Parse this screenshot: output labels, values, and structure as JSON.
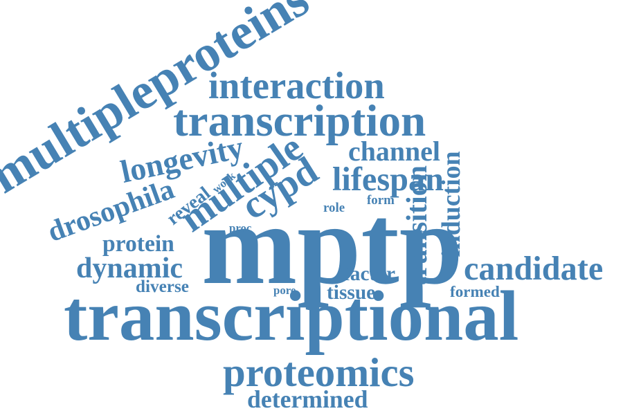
{
  "cloud": {
    "color": "#4682b4",
    "background": "#ffffff",
    "words": {
      "mptp": "mptp",
      "transcriptional": "transcriptional",
      "multipleproteins": "multipleproteins",
      "transcription": "transcription",
      "interaction": "interaction",
      "proteomics": "proteomics",
      "determined": "determined",
      "candidate": "candidate",
      "transition": "transition",
      "induction": "induction",
      "lifespan": "lifespan",
      "channel": "channel",
      "multiple": "multiple",
      "cypd": "cypd",
      "longevity": "longevity",
      "drosophila": "drosophila",
      "protein": "protein",
      "dynamic": "dynamic",
      "diverse": "diverse",
      "reveal": "reveal",
      "work": "work",
      "proc": "proc",
      "role": "role",
      "form": "form",
      "factor": "factor",
      "tissue": "tissue",
      "formed": "formed",
      "pore": "pore"
    }
  }
}
